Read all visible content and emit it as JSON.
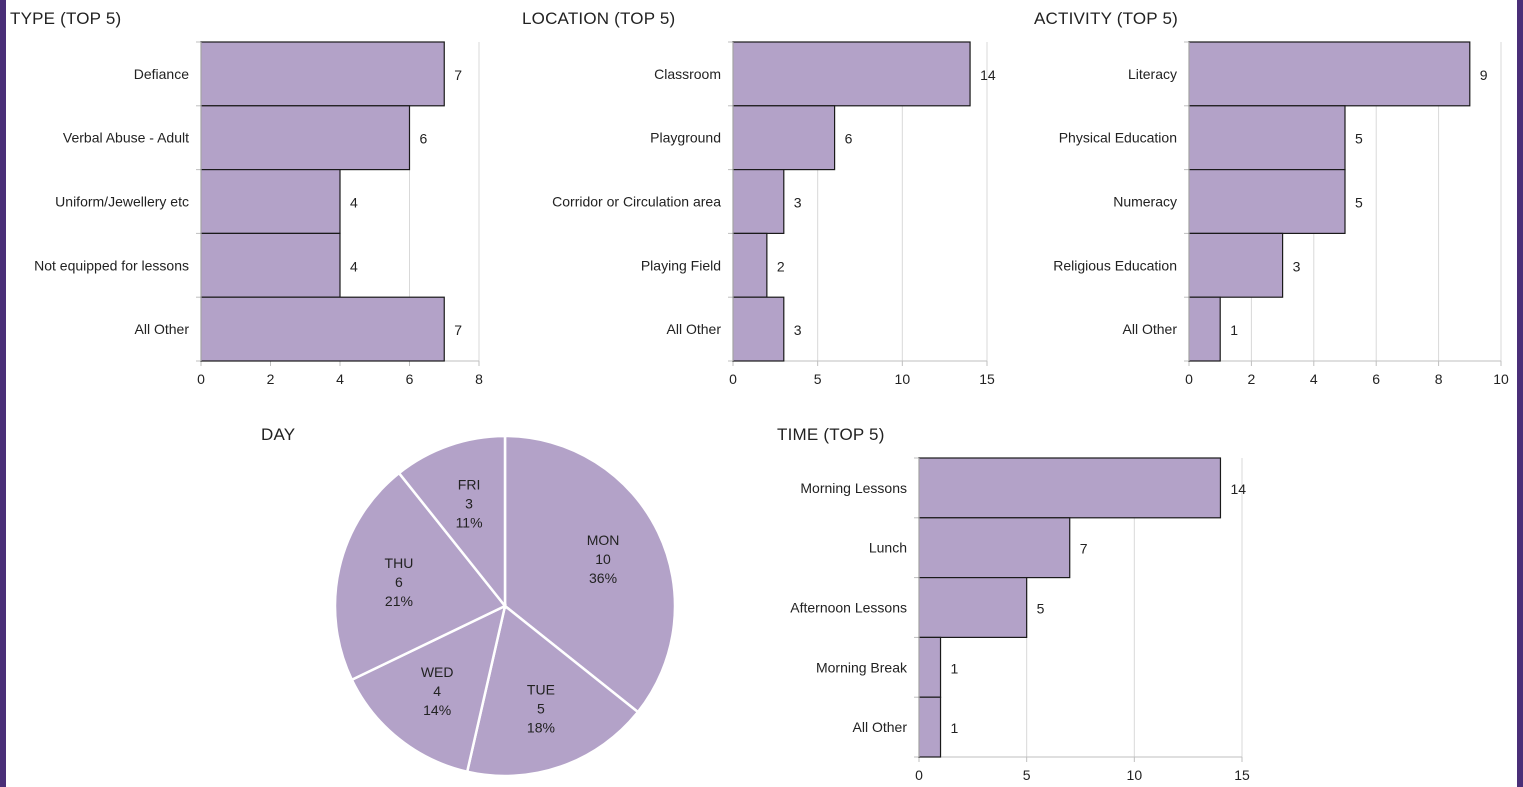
{
  "charts": {
    "type_title": "TYPE (TOP 5)",
    "location_title": "LOCATION (TOP 5)",
    "activity_title": "ACTIVITY (TOP 5)",
    "day_title": "DAY",
    "time_title": "TIME (TOP 5)"
  },
  "colors": {
    "bar_fill": "#b3a2c8",
    "bar_stroke": "#1a1a1a",
    "grid": "#d9d9d9",
    "frame": "#4a2f78"
  },
  "chart_data": [
    {
      "id": "type",
      "type": "bar",
      "orientation": "horizontal",
      "title": "TYPE (TOP 5)",
      "categories": [
        "Defiance",
        "Verbal Abuse - Adult",
        "Uniform/Jewellery etc",
        "Not equipped for lessons",
        "All Other"
      ],
      "values": [
        7,
        6,
        4,
        4,
        7
      ],
      "xlim": [
        0,
        8
      ],
      "ticks": [
        0,
        2,
        4,
        6,
        8
      ],
      "grid": true
    },
    {
      "id": "location",
      "type": "bar",
      "orientation": "horizontal",
      "title": "LOCATION (TOP 5)",
      "categories": [
        "Classroom",
        "Playground",
        "Corridor or Circulation area",
        "Playing Field",
        "All Other"
      ],
      "values": [
        14,
        6,
        3,
        2,
        3
      ],
      "xlim": [
        0,
        15
      ],
      "ticks": [
        0,
        5,
        10,
        15
      ],
      "grid": true
    },
    {
      "id": "activity",
      "type": "bar",
      "orientation": "horizontal",
      "title": "ACTIVITY (TOP 5)",
      "categories": [
        "Literacy",
        "Physical Education",
        "Numeracy",
        "Religious Education",
        "All Other"
      ],
      "values": [
        9,
        5,
        5,
        3,
        1
      ],
      "xlim": [
        0,
        10
      ],
      "ticks": [
        0,
        2,
        4,
        6,
        8,
        10
      ],
      "grid": true
    },
    {
      "id": "day",
      "type": "pie",
      "title": "DAY",
      "slices": [
        {
          "label": "MON",
          "value": 10,
          "percent": "36%"
        },
        {
          "label": "TUE",
          "value": 5,
          "percent": "18%"
        },
        {
          "label": "WED",
          "value": 4,
          "percent": "14%"
        },
        {
          "label": "THU",
          "value": 6,
          "percent": "21%"
        },
        {
          "label": "FRI",
          "value": 3,
          "percent": "11%"
        }
      ]
    },
    {
      "id": "time",
      "type": "bar",
      "orientation": "horizontal",
      "title": "TIME (TOP 5)",
      "categories": [
        "Morning Lessons",
        "Lunch",
        "Afternoon Lessons",
        "Morning Break",
        "All Other"
      ],
      "values": [
        14,
        7,
        5,
        1,
        1
      ],
      "xlim": [
        0,
        15
      ],
      "ticks": [
        0,
        5,
        10,
        15
      ],
      "grid": true
    }
  ]
}
